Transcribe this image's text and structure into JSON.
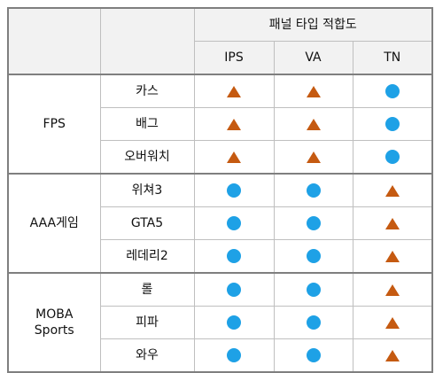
{
  "colors": {
    "header_bg": "#f2f2f2",
    "circle": "#1ea1e6",
    "triangle": "#c55a11",
    "border": "#bfbfbf",
    "thick_border": "#7f7f7f"
  },
  "header": {
    "group_title": "패널 타입 적합도",
    "columns": [
      "IPS",
      "VA",
      "TN"
    ]
  },
  "legend_symbols": {
    "circle": "circle-icon",
    "triangle": "triangle-icon"
  },
  "groups": [
    {
      "category": "FPS",
      "rows": [
        {
          "game": "카스",
          "IPS": "triangle",
          "VA": "triangle",
          "TN": "circle"
        },
        {
          "game": "배그",
          "IPS": "triangle",
          "VA": "triangle",
          "TN": "circle"
        },
        {
          "game": "오버워치",
          "IPS": "triangle",
          "VA": "triangle",
          "TN": "circle"
        }
      ]
    },
    {
      "category": "AAA게임",
      "rows": [
        {
          "game": "위쳐3",
          "IPS": "circle",
          "VA": "circle",
          "TN": "triangle"
        },
        {
          "game": "GTA5",
          "IPS": "circle",
          "VA": "circle",
          "TN": "triangle"
        },
        {
          "game": "레데리2",
          "IPS": "circle",
          "VA": "circle",
          "TN": "triangle"
        }
      ]
    },
    {
      "category": "MOBA\nSports",
      "rows": [
        {
          "game": "롤",
          "IPS": "circle",
          "VA": "circle",
          "TN": "triangle"
        },
        {
          "game": "피파",
          "IPS": "circle",
          "VA": "circle",
          "TN": "triangle"
        },
        {
          "game": "와우",
          "IPS": "circle",
          "VA": "circle",
          "TN": "triangle"
        }
      ]
    }
  ]
}
